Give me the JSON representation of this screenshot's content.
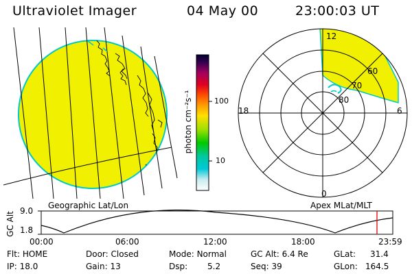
{
  "header": {
    "title": "Ultraviolet Imager",
    "date": "04 May 00",
    "time": "23:00:03 UT"
  },
  "colors": {
    "image_fill": "#f0f000",
    "image_edge": "#00c8c8",
    "coast": "#000000",
    "marker": "#e00000"
  },
  "colorbar": {
    "unit_label": "photon cm⁻²s⁻¹",
    "ticks": [
      "100",
      "10"
    ]
  },
  "polar": {
    "mlt_labels": {
      "top": "12",
      "left": "18",
      "right": "6",
      "bottom": "0"
    },
    "lat_labels": [
      "60",
      "70",
      "80"
    ]
  },
  "panel_labels": {
    "left": "Geographic Lat/Lon",
    "right": "Apex MLat/MLT"
  },
  "alt_plot": {
    "ylabel": "GC Alt",
    "ymax": "9.0",
    "ymin": "1.8",
    "xticks": [
      "00:00",
      "06:00",
      "12:00",
      "18:00",
      "23:59"
    ]
  },
  "info": {
    "row1": [
      {
        "k": "Flt:",
        "v": "HOME"
      },
      {
        "k": "Door:",
        "v": "Closed"
      },
      {
        "k": "Mode:",
        "v": "Normal"
      },
      {
        "k": "GC Alt:",
        "v": "6.4 Re"
      },
      {
        "k": "GLat:",
        "v": "31.4"
      }
    ],
    "row2": [
      {
        "k": "IP:",
        "v": "18.0"
      },
      {
        "k": "Gain:",
        "v": "13"
      },
      {
        "k": "Dsp:",
        "v": "5.2"
      },
      {
        "k": "Seq:",
        "v": "39"
      },
      {
        "k": "GLon:",
        "v": "164.5"
      }
    ]
  }
}
